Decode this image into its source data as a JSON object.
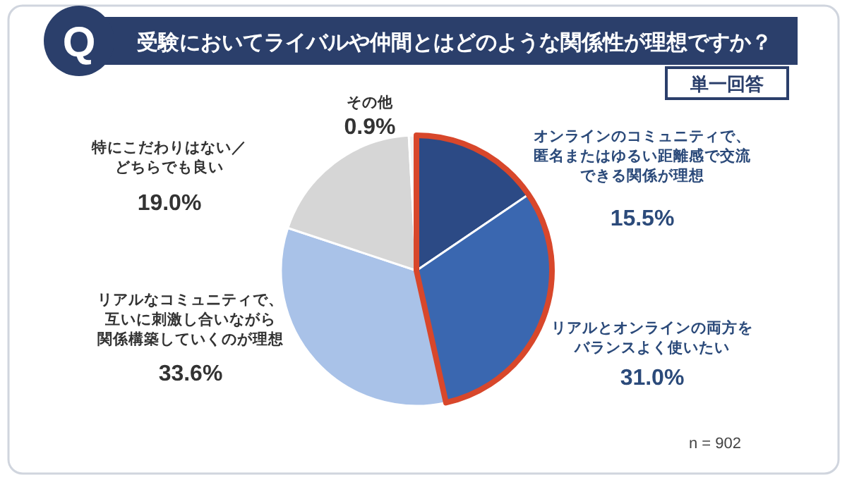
{
  "chart_data": {
    "type": "pie",
    "title": "受験においてライバルや仲間とはどのような関係性が理想ですか？",
    "categories": [
      "オンラインのコミュニティで、匿名またはゆるい距離感で交流できる関係が理想",
      "リアルとオンラインの両方をバランスよく使いたい",
      "リアルなコミュニティで、互いに刺激し合いながら関係構築していくのが理想",
      "特にこだわりはない／どちらでも良い",
      "その他"
    ],
    "values": [
      15.5,
      31.0,
      33.6,
      19.0,
      0.9
    ],
    "value_labels": [
      "15.5%",
      "31.0%",
      "33.6%",
      "19.0%",
      "0.9%"
    ],
    "colors": [
      "#2c4a85",
      "#3a67b0",
      "#a9c2e8",
      "#d6d6d6",
      "#f2f2f2"
    ],
    "annotations": [
      "Q",
      "単一回答",
      "n = 902"
    ]
  }
}
